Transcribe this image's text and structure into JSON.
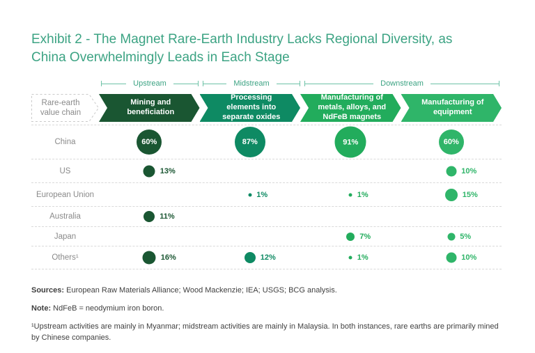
{
  "title": "Exhibit 2 - The Magnet Rare-Earth Industry Lacks Regional Diversity, as China Overwhelmingly Leads in Each Stage",
  "value_chain": {
    "axis_label": "Rare-earth value chain",
    "phases": [
      {
        "label": "Upstream",
        "span": 1
      },
      {
        "label": "Midstream",
        "span": 1
      },
      {
        "label": "Downstream",
        "span": 2
      }
    ],
    "stages": [
      {
        "label": "Mining and beneficiation",
        "color": "#1A5632"
      },
      {
        "label": "Processing elements into separate oxides",
        "color": "#0E8A63"
      },
      {
        "label": "Manufacturing of metals, alloys, and NdFeB magnets",
        "color": "#22AC5C"
      },
      {
        "label": "Manufacturing of equipment",
        "color": "#2FB569"
      }
    ]
  },
  "chart_data": {
    "type": "bubble",
    "title": "Exhibit 2 - The Magnet Rare-Earth Industry Lacks Regional Diversity, as China Overwhelmingly Leads in Each Stage",
    "unit": "%",
    "categories": [
      "Mining and beneficiation",
      "Processing elements into separate oxides",
      "Manufacturing of metals, alloys, and NdFeB magnets",
      "Manufacturing of equipment"
    ],
    "rows": [
      {
        "label": "China",
        "values": [
          60,
          87,
          91,
          60
        ],
        "labels_inside": true
      },
      {
        "label": "US",
        "values": [
          13,
          null,
          null,
          10
        ]
      },
      {
        "label": "European Union",
        "values": [
          null,
          1,
          1,
          15
        ]
      },
      {
        "label": "Australia",
        "values": [
          11,
          null,
          null,
          null
        ]
      },
      {
        "label": "Japan",
        "values": [
          null,
          null,
          7,
          5
        ]
      },
      {
        "label": "Others¹",
        "values": [
          16,
          12,
          1,
          10
        ]
      }
    ],
    "legend": "none",
    "bubble_area_note": "bubble diameter scales with square root of percentage"
  },
  "footer": {
    "sources_label": "Sources:",
    "sources_text": " European Raw Materials Alliance; Wood Mackenzie; IEA; USGS; BCG analysis.",
    "note_label": "Note:",
    "note_text": " NdFeB = neodymium iron boron.",
    "footnote": "¹Upstream activities are mainly in Myanmar; midstream activities are mainly in Malaysia. In both instances, rare earths are primarily mined by Chinese companies."
  },
  "colors": {
    "title": "#3CA383",
    "phase_bracket": "#6DC2A6",
    "row_label": "#8A8A8A",
    "divider": "#D9D9D9",
    "footer_text": "#3F3F3F",
    "axis_chevron_border": "#C9C9C9"
  }
}
